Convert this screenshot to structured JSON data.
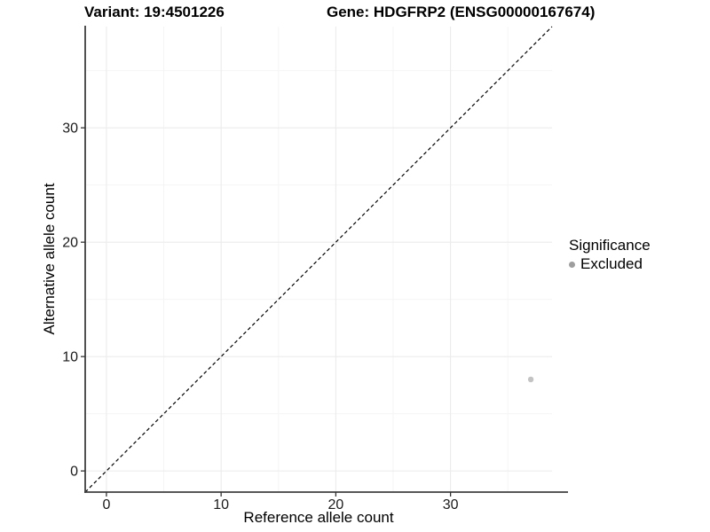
{
  "header": {
    "variant_title": "Variant: 19:4501226",
    "gene_title": "Gene: HDGFRP2 (ENSG00000167674)"
  },
  "legend": {
    "title": "Significance",
    "items": [
      {
        "label": "Excluded",
        "color": "#9e9e9e"
      }
    ]
  },
  "colors": {
    "background": "#ffffff",
    "axis_line": "#3f3f3f",
    "tick_mark": "#333333",
    "tick_label": "#1a1a1a",
    "major_grid": "#ebebeb",
    "minor_grid": "#f4f4f4",
    "identity_line": "#000000",
    "point": "#c3c3c3"
  },
  "chart_data": {
    "type": "scatter",
    "title": "Variant: 19:4501226 — Gene: HDGFRP2 (ENSG00000167674)",
    "xlabel": "Reference allele count",
    "ylabel": "Alternative allele count",
    "xlim": [
      -1.85,
      38.85
    ],
    "ylim": [
      -1.85,
      38.85
    ],
    "x_major_ticks": [
      0,
      10,
      20,
      30
    ],
    "y_major_ticks": [
      0,
      10,
      20,
      30
    ],
    "x_minor_gridlines": [
      5,
      15,
      25,
      35
    ],
    "y_minor_gridlines": [
      5,
      15,
      25,
      35
    ],
    "grid": "major+minor",
    "legend_position": "right",
    "identity_line": {
      "style": "dashed",
      "color": "#000000",
      "from": [
        -1.85,
        -1.85
      ],
      "to": [
        38.85,
        38.85
      ]
    },
    "series": [
      {
        "name": "Excluded",
        "marker": "circle",
        "color": "#c3c3c3",
        "points": [
          [
            37,
            8
          ]
        ]
      }
    ]
  }
}
